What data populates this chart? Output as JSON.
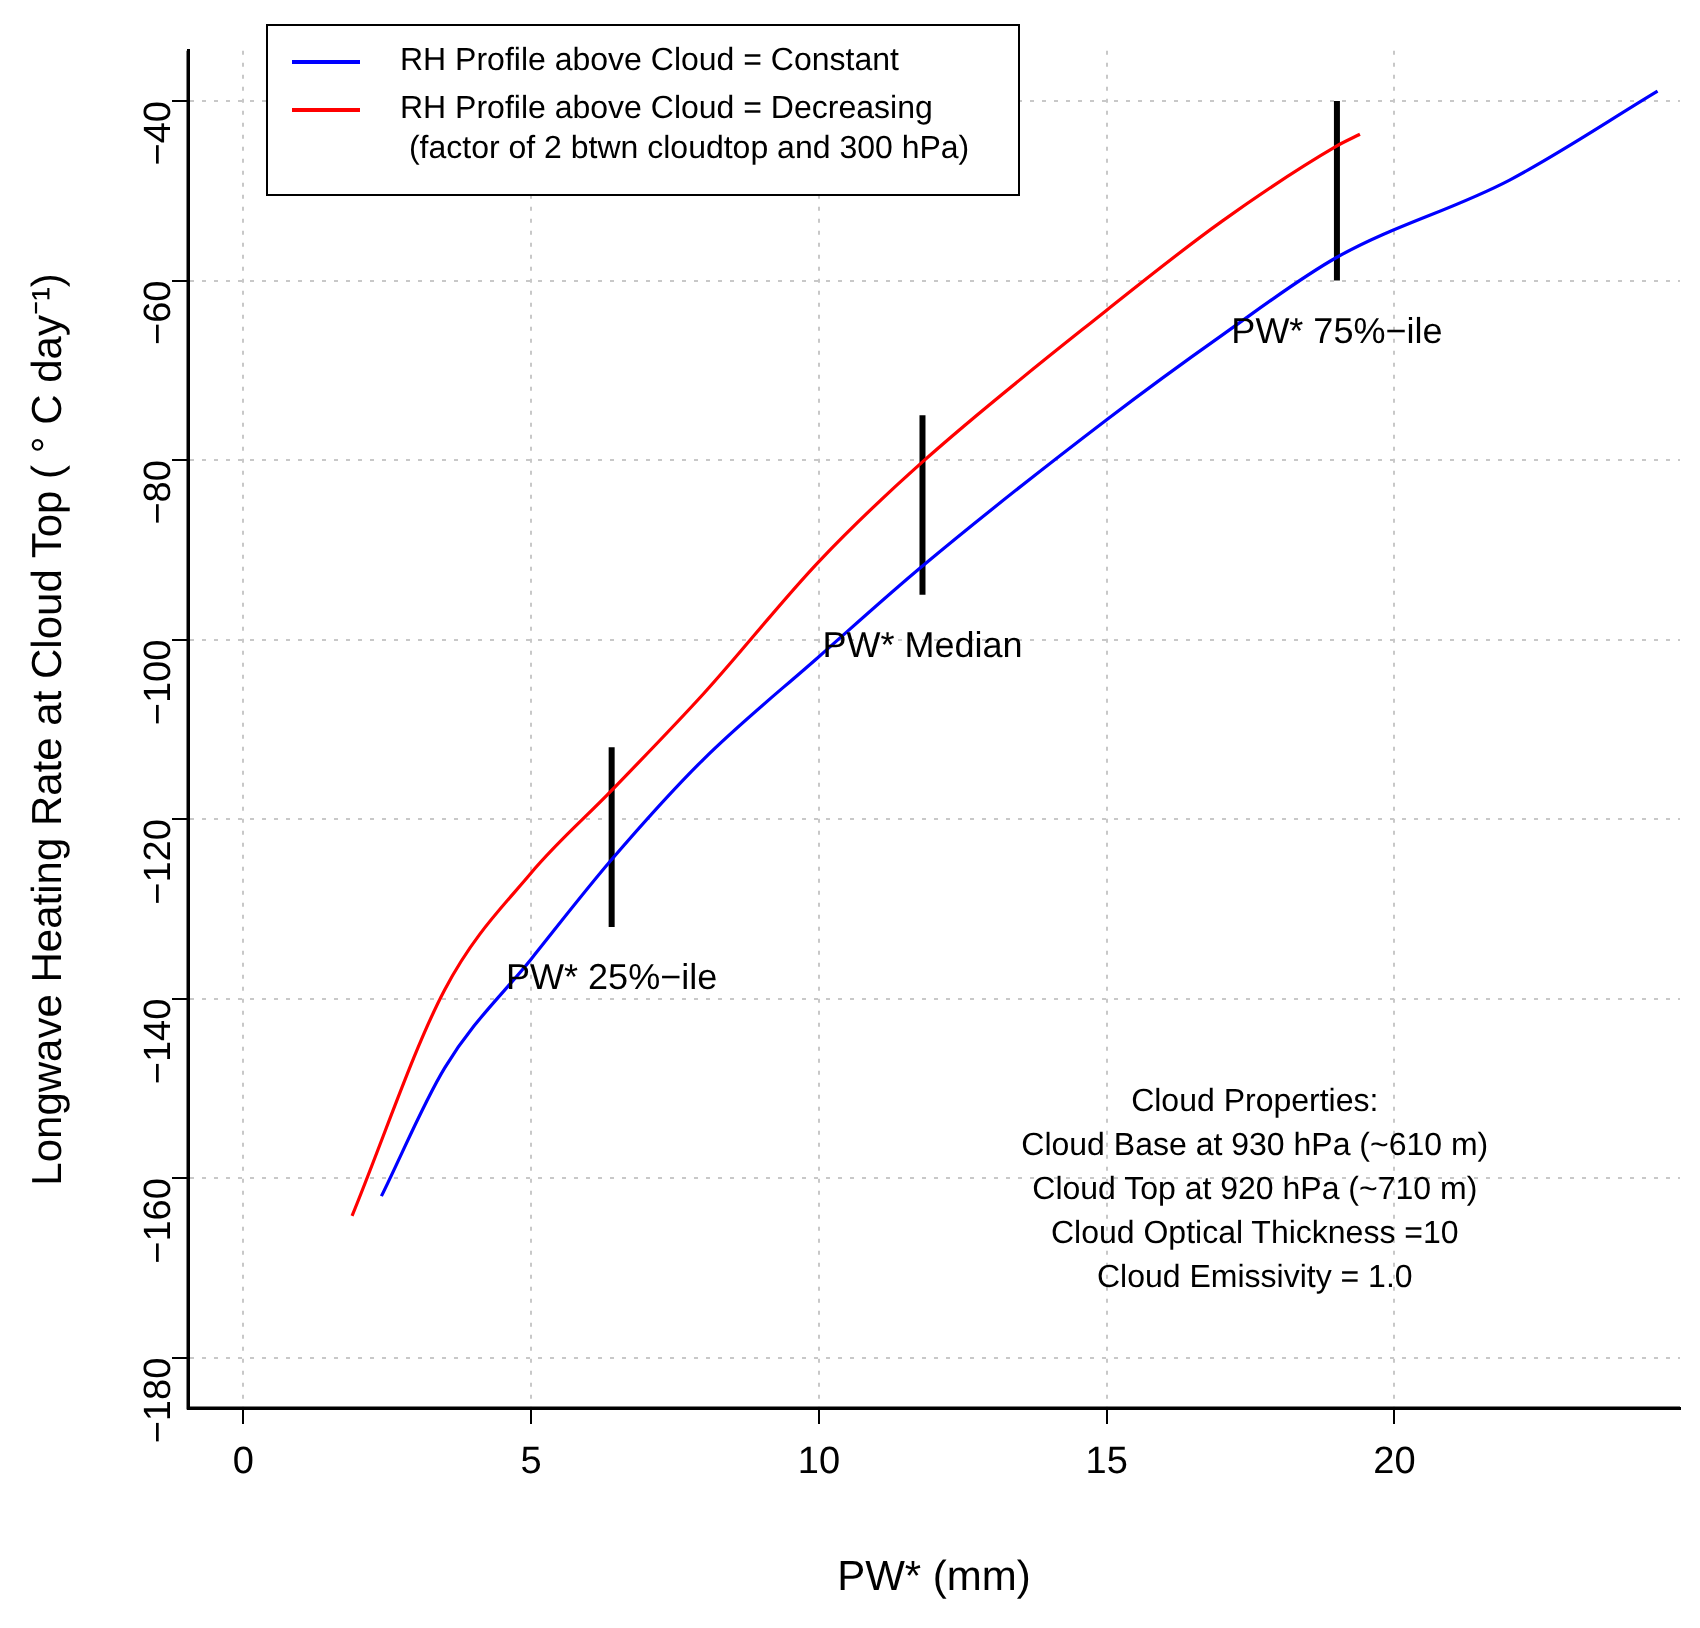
{
  "chart_data": {
    "type": "line",
    "xlabel": "PW* (mm)",
    "ylabel": "Longwave Heating Rate at Cloud Top ( ° C day⁻¹)",
    "xlim": [
      -0.96,
      24.96
    ],
    "xticks": [
      0,
      5,
      10,
      15,
      20
    ],
    "ylim": [
      -185.6,
      -34.4
    ],
    "yticks": [
      -180,
      -160,
      -140,
      -120,
      -100,
      -80,
      -60,
      -40
    ],
    "grid": true,
    "legend": "top left",
    "marker": "none",
    "line_style": "solid",
    "series": [
      {
        "name": "RH Profile above Cloud = Constant",
        "color": "#0000ff",
        "x": [
          2.4,
          3.5,
          5,
          6.4,
          8,
          10,
          11.8,
          15,
          17,
          19,
          22,
          24.57
        ],
        "values": [
          -162,
          -147.7,
          -135.6,
          -124.5,
          -113.3,
          -101.9,
          -91.8,
          -75.5,
          -66.1,
          -57.4,
          -48.8,
          -38.9
        ]
      },
      {
        "name": "RH Profile above Cloud = Decreasing\n (factor of 2 btwn cloudtop and 300 hPa)",
        "color": "#ff0000",
        "x": [
          1.89,
          3.5,
          5,
          6.4,
          8,
          10,
          11.8,
          15,
          17,
          19,
          19.4
        ],
        "values": [
          -164.2,
          -139,
          -126,
          -116.8,
          -106,
          -91.3,
          -80.2,
          -63.3,
          -53.4,
          -45,
          -43.7
        ]
      },
      {
        "color": "#000000",
        "x": [
          6.4,
          6.4
        ],
        "values": [
          -112,
          -132
        ]
      },
      {
        "color": "#000000",
        "x": [
          11.8,
          11.8
        ],
        "values": [
          -75,
          -95
        ]
      },
      {
        "color": "#000000",
        "x": [
          19,
          19
        ],
        "values": [
          -40,
          -60
        ]
      }
    ],
    "annotations": [
      {
        "text": "PW* 25%−ile",
        "x": 6.4,
        "y": -132
      },
      {
        "text": "PW* Median",
        "x": 11.8,
        "y": -95
      },
      {
        "text": "PW* 75%−ile",
        "x": 19,
        "y": -60
      },
      "Cloud Properties:\nCloud Base at 930 hPa (~610 m)\nCloud Top at 920 hPa (~710 m)\nCloud Optical Thickness =10\nCloud Emissivity = 1.0"
    ]
  }
}
